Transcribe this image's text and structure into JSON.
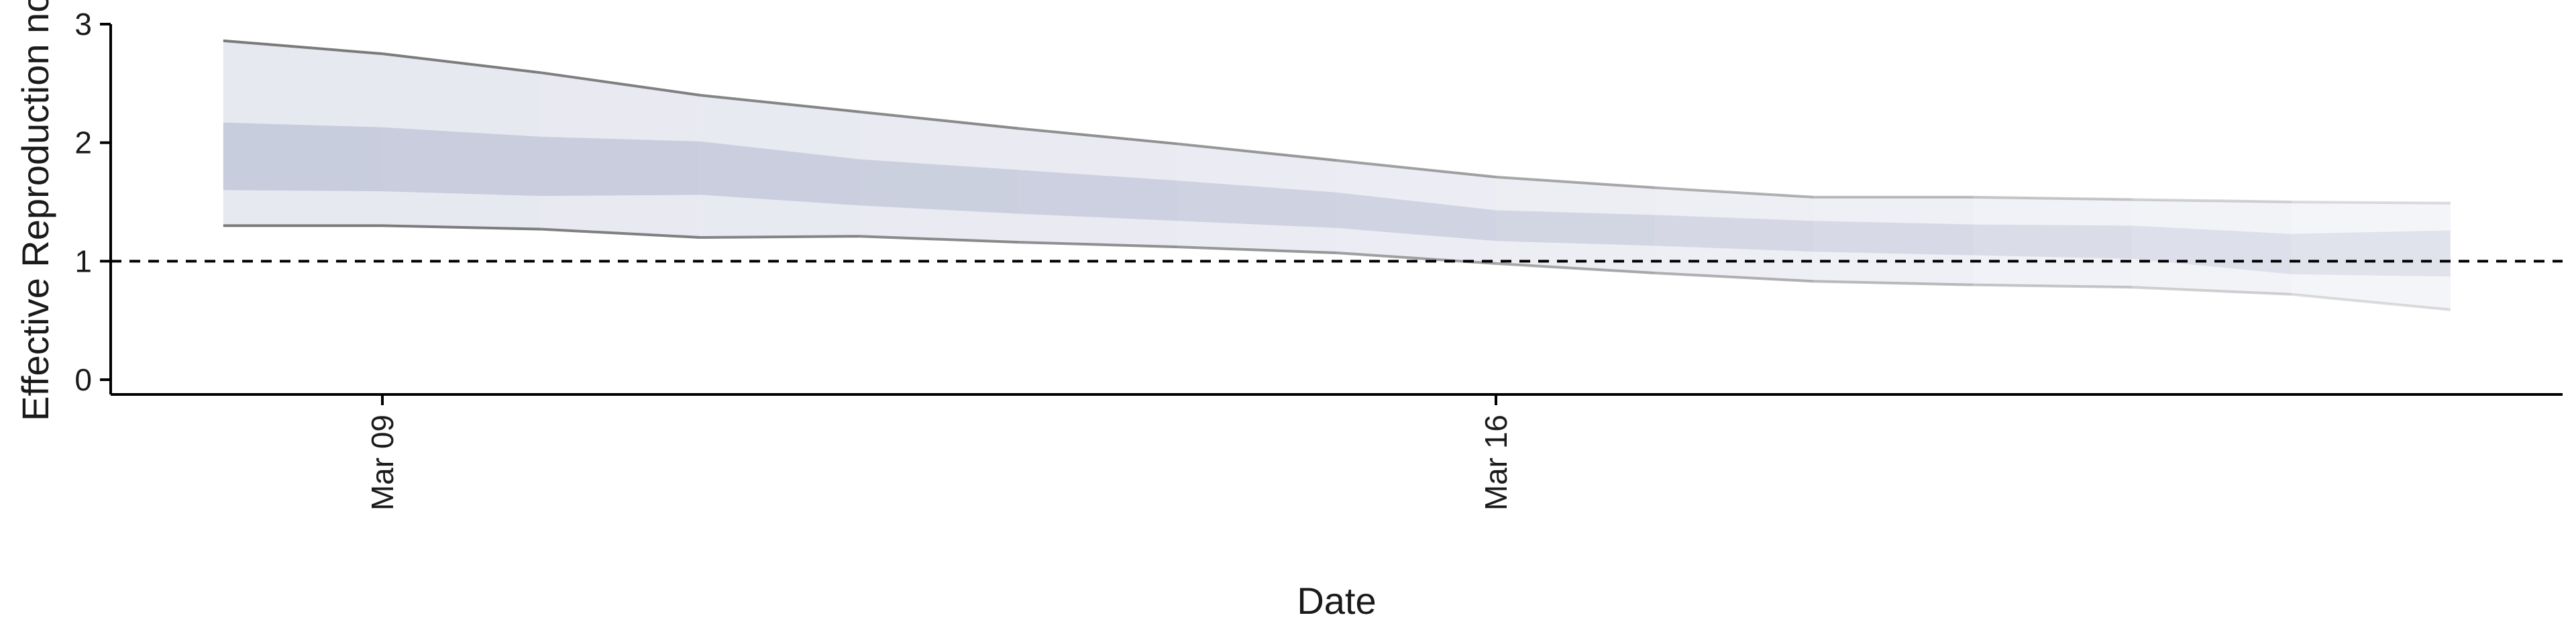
{
  "chart_data": {
    "type": "area",
    "xlabel": "Date",
    "ylabel": "Effective Reproduction no.",
    "ylim": [
      0,
      3
    ],
    "xlim": [
      "2020-03-07",
      "2020-03-23"
    ],
    "y_ticks": [
      0,
      1,
      2,
      3
    ],
    "x_ticks": [
      {
        "date": "2020-03-09",
        "label": "Mar 09"
      },
      {
        "date": "2020-03-16",
        "label": "Mar 16"
      }
    ],
    "reference_line": {
      "y": 1,
      "style": "dashed"
    },
    "grid": false,
    "band_colors": {
      "outer": "#dfe1ec",
      "inner": "#bec3d6",
      "line": "#7a7a7a",
      "reference": "#000000"
    },
    "x": [
      "2020-03-08",
      "2020-03-09",
      "2020-03-10",
      "2020-03-11",
      "2020-03-12",
      "2020-03-13",
      "2020-03-14",
      "2020-03-15",
      "2020-03-16",
      "2020-03-17",
      "2020-03-18",
      "2020-03-19",
      "2020-03-20",
      "2020-03-21",
      "2020-03-22"
    ],
    "series": [
      {
        "band": "upper_95",
        "values": [
          2.86,
          2.75,
          2.59,
          2.4,
          2.26,
          2.12,
          1.99,
          1.85,
          1.71,
          1.62,
          1.54,
          1.54,
          1.52,
          1.5,
          1.49
        ]
      },
      {
        "band": "upper_50",
        "values": [
          2.17,
          2.13,
          2.05,
          2.01,
          1.86,
          1.77,
          1.68,
          1.58,
          1.43,
          1.39,
          1.34,
          1.31,
          1.3,
          1.23,
          1.26
        ]
      },
      {
        "band": "lower_50",
        "values": [
          1.6,
          1.59,
          1.55,
          1.56,
          1.47,
          1.4,
          1.34,
          1.28,
          1.17,
          1.13,
          1.08,
          1.05,
          1.02,
          0.89,
          0.87
        ]
      },
      {
        "band": "lower_95",
        "values": [
          1.3,
          1.3,
          1.27,
          1.2,
          1.21,
          1.16,
          1.12,
          1.07,
          0.98,
          0.9,
          0.83,
          0.8,
          0.78,
          0.72,
          0.59
        ]
      }
    ]
  }
}
